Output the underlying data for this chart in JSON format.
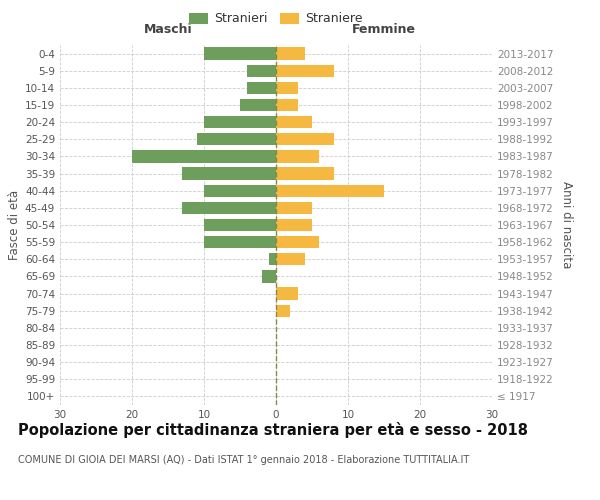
{
  "age_groups": [
    "100+",
    "95-99",
    "90-94",
    "85-89",
    "80-84",
    "75-79",
    "70-74",
    "65-69",
    "60-64",
    "55-59",
    "50-54",
    "45-49",
    "40-44",
    "35-39",
    "30-34",
    "25-29",
    "20-24",
    "15-19",
    "10-14",
    "5-9",
    "0-4"
  ],
  "birth_years": [
    "≤ 1917",
    "1918-1922",
    "1923-1927",
    "1928-1932",
    "1933-1937",
    "1938-1942",
    "1943-1947",
    "1948-1952",
    "1953-1957",
    "1958-1962",
    "1963-1967",
    "1968-1972",
    "1973-1977",
    "1978-1982",
    "1983-1987",
    "1988-1992",
    "1993-1997",
    "1998-2002",
    "2003-2007",
    "2008-2012",
    "2013-2017"
  ],
  "males": [
    0,
    0,
    0,
    0,
    0,
    0,
    0,
    2,
    1,
    10,
    10,
    13,
    10,
    13,
    20,
    11,
    10,
    5,
    4,
    4,
    10
  ],
  "females": [
    0,
    0,
    0,
    0,
    0,
    2,
    3,
    0,
    4,
    6,
    5,
    5,
    15,
    8,
    6,
    8,
    5,
    3,
    3,
    8,
    4
  ],
  "male_color": "#6d9e5c",
  "female_color": "#f5b942",
  "background_color": "#ffffff",
  "grid_color": "#cccccc",
  "title": "Popolazione per cittadinanza straniera per età e sesso - 2018",
  "subtitle": "COMUNE DI GIOIA DEI MARSI (AQ) - Dati ISTAT 1° gennaio 2018 - Elaborazione TUTTITALIA.IT",
  "ylabel_left": "Fasce di età",
  "ylabel_right": "Anni di nascita",
  "legend_stranieri": "Stranieri",
  "legend_straniere": "Straniere",
  "header_maschi": "Maschi",
  "header_femmine": "Femmine",
  "xlim": 30,
  "title_fontsize": 10.5,
  "subtitle_fontsize": 7.0,
  "axis_label_fontsize": 8.5,
  "tick_fontsize": 7.5,
  "legend_fontsize": 9
}
